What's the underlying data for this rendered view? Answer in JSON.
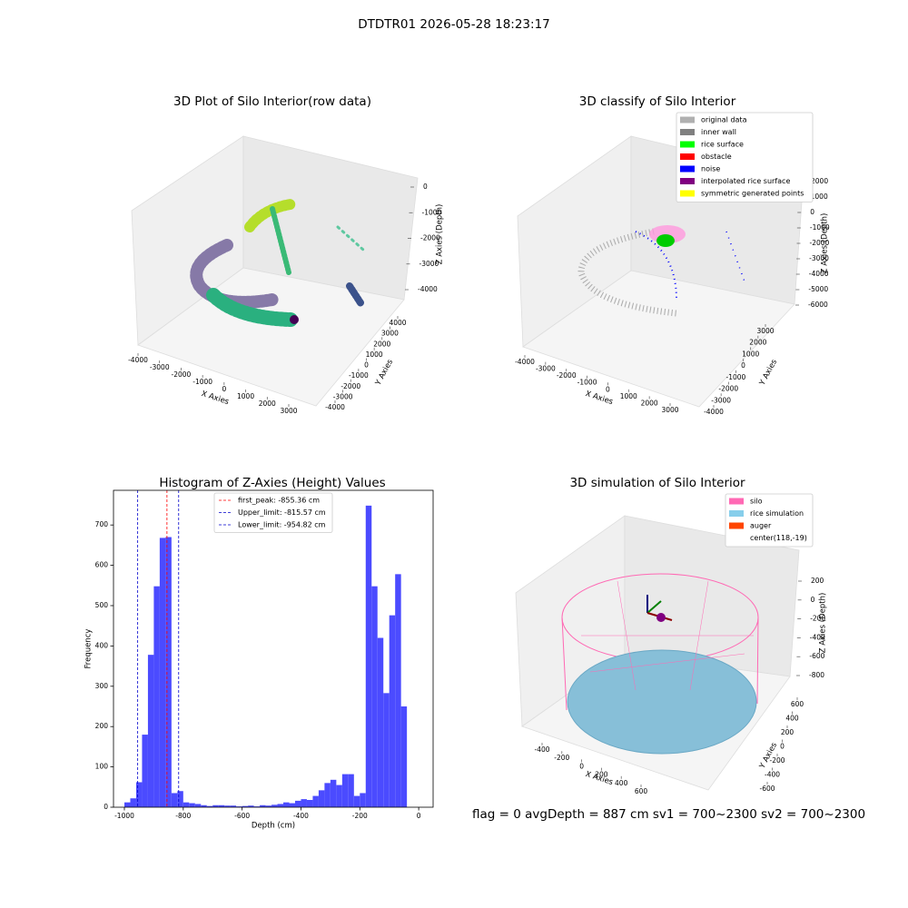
{
  "title": "DTDTR01 2026-05-28 18:23:17",
  "chart_data": [
    {
      "type": "scatter3d",
      "title": "3D Plot of Silo Interior(row data)",
      "xlabel": "X Axies",
      "ylabel": "Y Axies",
      "zlabel": "Z Axies (Depth)",
      "xticks": [
        -4000,
        -3000,
        -2000,
        -1000,
        0,
        1000,
        2000,
        3000
      ],
      "yticks": [
        -4000,
        -3000,
        -2000,
        -1000,
        0,
        1000,
        2000,
        3000,
        4000
      ],
      "zticks": [
        0,
        -1000,
        -2000,
        -3000,
        -4000
      ]
    },
    {
      "type": "scatter3d",
      "title": "3D classify of Silo Interior",
      "xlabel": "X Axies",
      "ylabel": "Y Axies",
      "zlabel": "Z Axies (Depth)",
      "xticks": [
        -4000,
        -3000,
        -2000,
        -1000,
        0,
        1000,
        2000,
        3000
      ],
      "yticks": [
        -4000,
        -3000,
        -2000,
        -1000,
        0,
        1000,
        2000,
        3000
      ],
      "zticks": [
        2000,
        1000,
        0,
        -1000,
        -2000,
        -3000,
        -4000,
        -5000,
        -6000
      ],
      "legend": [
        {
          "name": "original data",
          "color": "#b0b0b0"
        },
        {
          "name": "inner wall",
          "color": "#808080"
        },
        {
          "name": "rice surface",
          "color": "#00ff00"
        },
        {
          "name": "obstacle",
          "color": "#ff0000"
        },
        {
          "name": "noise",
          "color": "#0000ff"
        },
        {
          "name": "interpolated rice surface",
          "color": "#800080"
        },
        {
          "name": "symmetric generated points",
          "color": "#ffff00"
        }
      ]
    },
    {
      "type": "histogram",
      "title": "Histogram of Z-Axies (Height) Values",
      "xlabel": "Depth (cm)",
      "ylabel": "Frequency",
      "color": "#4b4bff",
      "bins": [
        -1000,
        -980,
        -960,
        -940,
        -920,
        -900,
        -880,
        -860,
        -840,
        -820,
        -800,
        -780,
        -760,
        -740,
        -720,
        -700,
        -680,
        -660,
        -640,
        -620,
        -600,
        -580,
        -560,
        -540,
        -520,
        -500,
        -480,
        -460,
        -440,
        -420,
        -400,
        -380,
        -360,
        -340,
        -320,
        -300,
        -280,
        -260,
        -240,
        -220,
        -200,
        -180,
        -160,
        -140,
        -120,
        -100,
        -80,
        -60,
        -40,
        -20,
        0
      ],
      "counts": [
        12,
        22,
        62,
        180,
        378,
        548,
        668,
        670,
        35,
        40,
        12,
        10,
        8,
        5,
        3,
        5,
        5,
        4,
        4,
        2,
        3,
        4,
        2,
        5,
        4,
        6,
        8,
        12,
        10,
        16,
        20,
        18,
        28,
        42,
        60,
        68,
        55,
        82,
        82,
        28,
        35,
        748,
        548,
        420,
        283,
        476,
        578,
        250,
        0,
        0
      ],
      "xlim": [
        -1037,
        49
      ],
      "ylim": [
        0,
        786
      ],
      "xticks": [
        -1000,
        -800,
        -600,
        -400,
        -200,
        0
      ],
      "yticks": [
        0,
        100,
        200,
        300,
        400,
        500,
        600,
        700
      ],
      "lines": [
        {
          "name": "first_peak: -855.36 cm",
          "value": -855.36,
          "color": "#ff0000"
        },
        {
          "name": "Upper_limit: -815.57 cm",
          "value": -815.57,
          "color": "#0000cc"
        },
        {
          "name": "Lower_limit: -954.82 cm",
          "value": -954.82,
          "color": "#0000cc"
        }
      ]
    },
    {
      "type": "surface3d",
      "title": "3D simulation of Silo Interior",
      "xlabel": "X Axies",
      "ylabel": "Y Axies",
      "zlabel": "Z Axies (Depth)",
      "xticks": [
        -400,
        -200,
        0,
        200,
        400,
        600
      ],
      "yticks": [
        -600,
        -400,
        -200,
        0,
        200,
        400,
        600
      ],
      "zticks": [
        200,
        0,
        -200,
        -400,
        -600,
        -800
      ],
      "legend": [
        {
          "name": "silo",
          "color": "#ff69b4"
        },
        {
          "name": "rice simulation",
          "color": "#87ceeb"
        },
        {
          "name": "auger",
          "color": "#ff4500"
        },
        {
          "name": "center(118,-19)"
        }
      ]
    }
  ],
  "footer": "flag = 0     avgDepth = 887 cm  sv1 = 700~2300  sv2 = 700~2300"
}
